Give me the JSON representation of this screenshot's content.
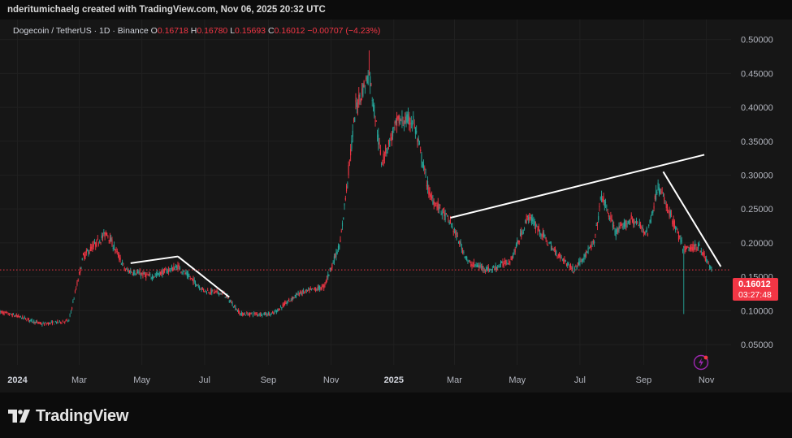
{
  "header": {
    "credit": "nderitumichaelg created with TradingView.com, Nov 06, 2025 20:32 UTC"
  },
  "legend": {
    "symbol": "Dogecoin / TetherUS · 1D · Binance",
    "open_label": "O",
    "open": "0.16718",
    "high_label": "H",
    "high": "0.16780",
    "low_label": "L",
    "low": "0.15693",
    "close_label": "C",
    "close": "0.16012",
    "change": "−0.00707 (−4.23%)"
  },
  "price_tag": {
    "price": "0.16012",
    "countdown": "03:27:48"
  },
  "footer": {
    "brand": "TradingView"
  },
  "icons": {
    "flash": "flash-icon",
    "logo": "tradingview-logo-icon"
  },
  "colors": {
    "up": "#26a69a",
    "down": "#f23645",
    "trendline": "#ffffff",
    "background": "#161616",
    "price_line": "#f23645"
  },
  "chart_data": {
    "type": "candlestick",
    "interval": "1D",
    "y_axis": {
      "position": "right",
      "ticks": [
        "0.50000",
        "0.45000",
        "0.40000",
        "0.35000",
        "0.30000",
        "0.25000",
        "0.20000",
        "0.15000",
        "0.10000",
        "0.05000"
      ],
      "ylim": [
        0.02,
        0.52
      ]
    },
    "x_axis": {
      "ticks": [
        "2024",
        "Mar",
        "May",
        "Jul",
        "Sep",
        "Nov",
        "2025",
        "Mar",
        "May",
        "Jul",
        "Sep",
        "Nov"
      ],
      "tick_dates": [
        "2024-01-01",
        "2024-03-01",
        "2024-05-01",
        "2024-07-01",
        "2024-09-01",
        "2024-11-01",
        "2025-01-01",
        "2025-03-01",
        "2025-05-01",
        "2025-07-01",
        "2025-09-01",
        "2025-11-01"
      ],
      "range": [
        "2023-12-15",
        "2025-11-25"
      ]
    },
    "current_price": 0.16012,
    "price_path": [
      {
        "date": "2023-12-15",
        "price": 0.098
      },
      {
        "date": "2024-01-05",
        "price": 0.09
      },
      {
        "date": "2024-01-25",
        "price": 0.08
      },
      {
        "date": "2024-02-20",
        "price": 0.085
      },
      {
        "date": "2024-03-05",
        "price": 0.18
      },
      {
        "date": "2024-03-28",
        "price": 0.215
      },
      {
        "date": "2024-04-15",
        "price": 0.16
      },
      {
        "date": "2024-05-10",
        "price": 0.15
      },
      {
        "date": "2024-06-05",
        "price": 0.165
      },
      {
        "date": "2024-06-30",
        "price": 0.13
      },
      {
        "date": "2024-07-20",
        "price": 0.125
      },
      {
        "date": "2024-08-05",
        "price": 0.095
      },
      {
        "date": "2024-09-05",
        "price": 0.095
      },
      {
        "date": "2024-09-30",
        "price": 0.125
      },
      {
        "date": "2024-10-25",
        "price": 0.135
      },
      {
        "date": "2024-11-10",
        "price": 0.2
      },
      {
        "date": "2024-11-25",
        "price": 0.4
      },
      {
        "date": "2024-12-08",
        "price": 0.45
      },
      {
        "date": "2024-12-20",
        "price": 0.32
      },
      {
        "date": "2025-01-05",
        "price": 0.38
      },
      {
        "date": "2025-01-20",
        "price": 0.38
      },
      {
        "date": "2025-02-05",
        "price": 0.27
      },
      {
        "date": "2025-02-25",
        "price": 0.23
      },
      {
        "date": "2025-03-15",
        "price": 0.17
      },
      {
        "date": "2025-04-05",
        "price": 0.16
      },
      {
        "date": "2025-04-25",
        "price": 0.175
      },
      {
        "date": "2025-05-12",
        "price": 0.24
      },
      {
        "date": "2025-06-05",
        "price": 0.19
      },
      {
        "date": "2025-06-25",
        "price": 0.16
      },
      {
        "date": "2025-07-15",
        "price": 0.2
      },
      {
        "date": "2025-07-22",
        "price": 0.27
      },
      {
        "date": "2025-08-05",
        "price": 0.215
      },
      {
        "date": "2025-08-20",
        "price": 0.235
      },
      {
        "date": "2025-09-05",
        "price": 0.215
      },
      {
        "date": "2025-09-15",
        "price": 0.285
      },
      {
        "date": "2025-09-30",
        "price": 0.23
      },
      {
        "date": "2025-10-10",
        "price": 0.19
      },
      {
        "date": "2025-10-25",
        "price": 0.195
      },
      {
        "date": "2025-11-06",
        "price": 0.16
      }
    ],
    "wicks": [
      {
        "date": "2024-12-08",
        "high": 0.484
      },
      {
        "date": "2025-10-10",
        "low": 0.095
      }
    ],
    "trendlines": [
      {
        "from": {
          "date": "2024-04-20",
          "price": 0.17
        },
        "to": {
          "date": "2024-06-05",
          "price": 0.18
        }
      },
      {
        "from": {
          "date": "2024-06-05",
          "price": 0.18
        },
        "to": {
          "date": "2024-07-25",
          "price": 0.12
        }
      },
      {
        "from": {
          "date": "2025-02-25",
          "price": 0.237
        },
        "to": {
          "date": "2025-10-30",
          "price": 0.33
        }
      },
      {
        "from": {
          "date": "2025-09-20",
          "price": 0.305
        },
        "to": {
          "date": "2025-11-15",
          "price": 0.165
        }
      }
    ]
  }
}
